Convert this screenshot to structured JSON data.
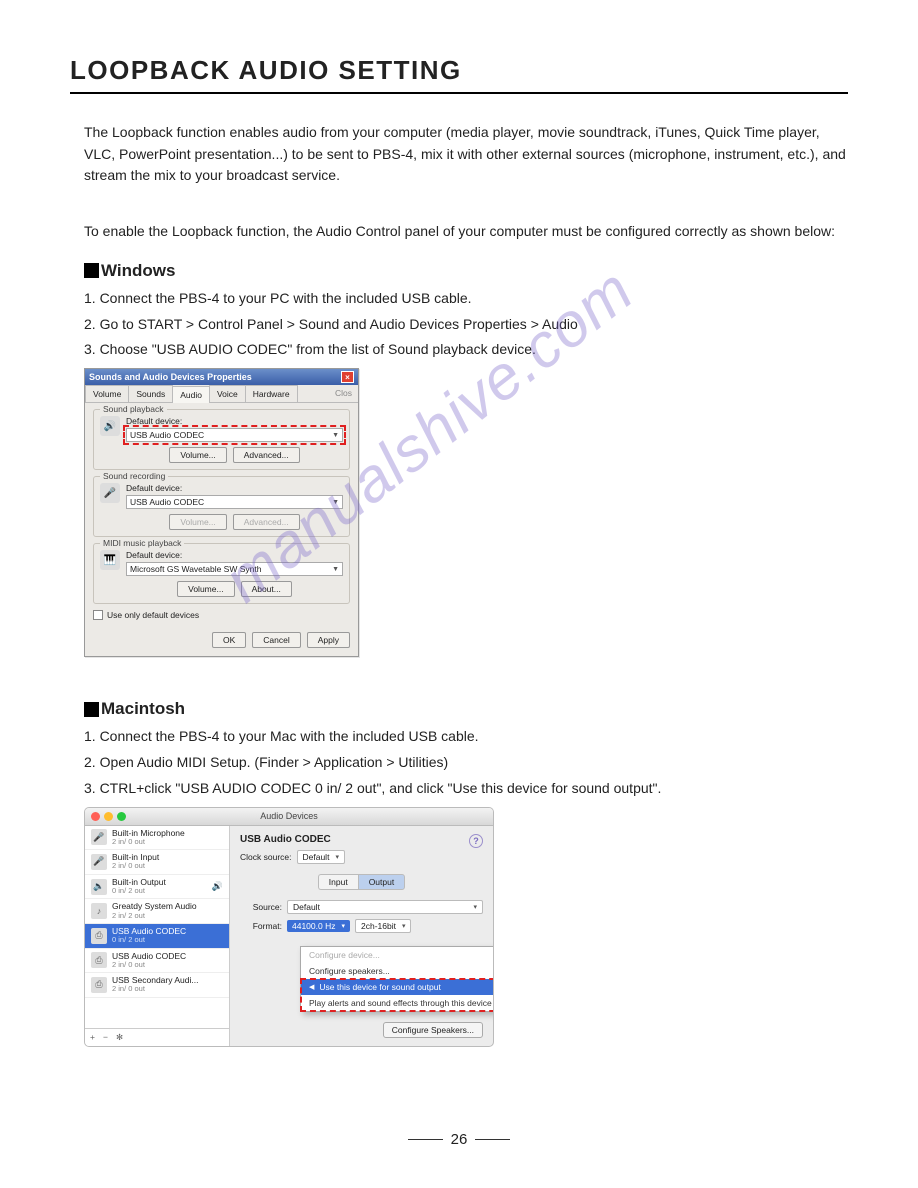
{
  "title": "LOOPBACK AUDIO SETTING",
  "intro": "The Loopback function enables audio from your computer (media player, movie soundtrack, iTunes, Quick Time player, VLC, PowerPoint presentation...) to be sent to PBS-4, mix it with other external sources (microphone, instrument, etc.), and stream the mix to your broadcast service.",
  "enable": "To enable the Loopback function, the Audio Control panel of your computer must be configured correctly as shown below:",
  "windows": {
    "heading": "Windows",
    "steps": [
      "1. Connect the PBS-4 to your PC with the included USB cable.",
      "2. Go to START > Control Panel > Sound and Audio Devices Properties > Audio",
      "3. Choose \"USB AUDIO CODEC\" from the list of Sound playback device."
    ],
    "dialog": {
      "title": "Sounds and Audio Devices Properties",
      "tabs": [
        "Volume",
        "Sounds",
        "Audio",
        "Voice",
        "Hardware"
      ],
      "tabs_extra": "Clos",
      "active_tab": 2,
      "groups": [
        {
          "label": "Sound playback",
          "def": "Default device:",
          "value": "USB Audio CODEC",
          "buttons": [
            "Volume...",
            "Advanced..."
          ],
          "highlight": true
        },
        {
          "label": "Sound recording",
          "def": "Default device:",
          "value": "USB Audio CODEC",
          "buttons": [
            "Volume...",
            "Advanced..."
          ],
          "buttons_disabled": true
        },
        {
          "label": "MIDI music playback",
          "def": "Default device:",
          "value": "Microsoft GS Wavetable SW Synth",
          "buttons": [
            "Volume...",
            "About..."
          ]
        }
      ],
      "checkbox": "Use only default devices",
      "footer": [
        "OK",
        "Cancel",
        "Apply"
      ]
    }
  },
  "mac": {
    "heading": "Macintosh",
    "steps": [
      "1. Connect the PBS-4 to your Mac with the included USB cable.",
      "2. Open Audio MIDI Setup. (Finder > Application > Utilities)",
      "3. CTRL+click \"USB AUDIO CODEC 0 in/ 2 out\", and click \"Use this device for sound output\"."
    ],
    "dialog": {
      "title": "Audio Devices",
      "sidebar": [
        {
          "name": "Built-in Microphone",
          "detail": "2 in/ 0 out"
        },
        {
          "name": "Built-in Input",
          "detail": "2 in/ 0 out"
        },
        {
          "name": "Built-in Output",
          "detail": "0 in/ 2 out",
          "speaker": true
        },
        {
          "name": "Greatdy System Audio",
          "detail": "2 in/ 2 out"
        },
        {
          "name": "USB Audio CODEC",
          "detail": "0 in/ 2 out",
          "selected": true
        },
        {
          "name": "USB Audio CODEC",
          "detail": "2 in/ 0 out"
        },
        {
          "name": "USB Secondary Audi...",
          "detail": "2 in/ 0 out"
        }
      ],
      "footer_icons": [
        "+",
        "−",
        "✻"
      ],
      "right": {
        "devtitle": "USB Audio CODEC",
        "clock_label": "Clock source:",
        "clock_value": "Default",
        "tabs": [
          "Input",
          "Output"
        ],
        "active_tab": 1,
        "source_label": "Source:",
        "source_value": "Default",
        "format_label": "Format:",
        "format_hz": "44100.0 Hz",
        "format_ch": "2ch-16bit",
        "config_btn": "Configure Speakers..."
      },
      "context": [
        {
          "text": "Configure device...",
          "disabled": true
        },
        {
          "text": "Configure speakers..."
        },
        {
          "text": "Use this device for sound output",
          "selected": true
        },
        {
          "text": "Play alerts and sound effects through this device"
        }
      ]
    }
  },
  "watermark": "manualshive.com",
  "page_number": "26"
}
